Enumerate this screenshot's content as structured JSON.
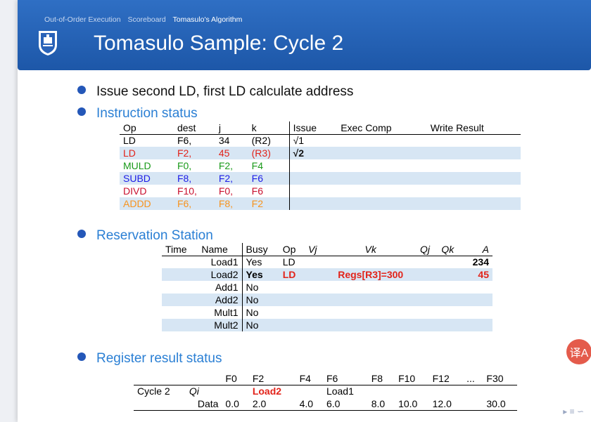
{
  "nav": {
    "items": [
      "Out-of-Order Execution",
      "Scoreboard",
      "Tomasulo's Algorithm"
    ]
  },
  "title": "Tomasulo Sample: Cycle 2",
  "bullets": [
    "Issue second LD, first LD calculate address",
    "Instruction status",
    "Reservation Station",
    "Register result status"
  ],
  "instr": {
    "headers": [
      "Op",
      "dest",
      "j",
      "k",
      "Issue",
      "Exec Comp",
      "Write Result"
    ],
    "rows": [
      {
        "op": "LD",
        "dest": "F6,",
        "j": "34",
        "k": "(R2)",
        "issue": "√1",
        "color": "black"
      },
      {
        "op": "LD",
        "dest": "F2,",
        "j": "45",
        "k": "(R3)",
        "issue": "√2",
        "color": "red"
      },
      {
        "op": "MULD",
        "dest": "F0,",
        "j": "F2,",
        "k": "F4",
        "issue": "",
        "color": "green"
      },
      {
        "op": "SUBD",
        "dest": "F8,",
        "j": "F2,",
        "k": "F6",
        "issue": "",
        "color": "blue"
      },
      {
        "op": "DIVD",
        "dest": "F10,",
        "j": "F0,",
        "k": "F6",
        "issue": "",
        "color": "crimson"
      },
      {
        "op": "ADDD",
        "dest": "F6,",
        "j": "F8,",
        "k": "F2",
        "issue": "",
        "color": "orange"
      }
    ]
  },
  "rs": {
    "headers": [
      "Time",
      "Name",
      "Busy",
      "Op",
      "Vj",
      "Vk",
      "Qj",
      "Qk",
      "A"
    ],
    "rows": [
      {
        "name": "Load1",
        "busy": "Yes",
        "op": "LD",
        "vk": "",
        "a": "234"
      },
      {
        "name": "Load2",
        "busy": "Yes",
        "op": "LD",
        "vk": "Regs[R3]=300",
        "a": "45"
      },
      {
        "name": "Add1",
        "busy": "No",
        "op": "",
        "vk": "",
        "a": ""
      },
      {
        "name": "Add2",
        "busy": "No",
        "op": "",
        "vk": "",
        "a": ""
      },
      {
        "name": "Mult1",
        "busy": "No",
        "op": "",
        "vk": "",
        "a": ""
      },
      {
        "name": "Mult2",
        "busy": "No",
        "op": "",
        "vk": "",
        "a": ""
      }
    ]
  },
  "reg": {
    "headers": [
      "F0",
      "F2",
      "F4",
      "F6",
      "F8",
      "F10",
      "F12",
      "...",
      "F30"
    ],
    "cycle_label": "Cycle 2",
    "qi_label": "Qi",
    "qi": [
      "",
      "Load2",
      "",
      "Load1",
      "",
      "",
      "",
      "",
      ""
    ],
    "data_label": "Data",
    "data": [
      "0.0",
      "2.0",
      "4.0",
      "6.0",
      "8.0",
      "10.0",
      "12.0",
      "",
      "30.0"
    ]
  },
  "badge": "译A"
}
